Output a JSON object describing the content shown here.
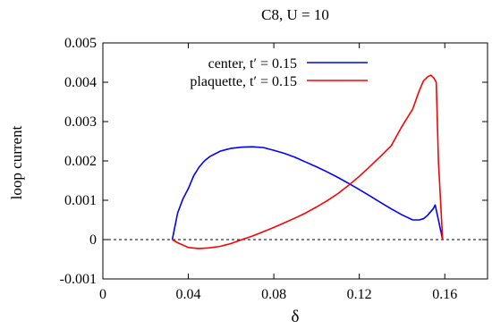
{
  "chart_data": {
    "type": "line",
    "title": "C8, U = 10",
    "xlabel": "δ",
    "ylabel": "loop current",
    "xlim": [
      0,
      0.18
    ],
    "ylim": [
      -0.001,
      0.005
    ],
    "xticks": [
      0,
      0.04,
      0.08,
      0.12,
      0.16
    ],
    "xtick_labels": [
      "0",
      "0.04",
      "0.08",
      "0.12",
      "0.16"
    ],
    "yticks": [
      -0.001,
      0,
      0.001,
      0.002,
      0.003,
      0.004,
      0.005
    ],
    "ytick_labels": [
      "-0.001",
      "0",
      "0.001",
      "0.002",
      "0.003",
      "0.004",
      "0.005"
    ],
    "grid": false,
    "legend_position": "top",
    "zero_line": "dashed",
    "series": [
      {
        "name": "center, t′ = 0.15",
        "color": "#0000ff",
        "x": [
          0.0325,
          0.035,
          0.0375,
          0.04,
          0.0425,
          0.045,
          0.0475,
          0.05,
          0.055,
          0.06,
          0.065,
          0.07,
          0.075,
          0.08,
          0.085,
          0.09,
          0.095,
          0.1,
          0.105,
          0.11,
          0.115,
          0.12,
          0.125,
          0.13,
          0.135,
          0.14,
          0.145,
          0.148,
          0.15,
          0.152,
          0.1545,
          0.1555,
          0.157,
          0.159
        ],
        "y": [
          0.0,
          0.00068,
          0.00104,
          0.0013,
          0.00162,
          0.00184,
          0.002,
          0.00211,
          0.00225,
          0.00232,
          0.00235,
          0.00236,
          0.00234,
          0.00227,
          0.00219,
          0.00209,
          0.00197,
          0.00185,
          0.00172,
          0.00158,
          0.00143,
          0.00127,
          0.00111,
          0.00094,
          0.00078,
          0.00063,
          0.0005,
          0.0005,
          0.00053,
          0.00062,
          0.00078,
          0.00088,
          0.0005,
          0.0
        ]
      },
      {
        "name": "plaquette, t′ = 0.15",
        "color": "#ff0000",
        "x": [
          0.0325,
          0.035,
          0.04,
          0.045,
          0.05,
          0.055,
          0.06,
          0.065,
          0.07,
          0.075,
          0.08,
          0.085,
          0.09,
          0.095,
          0.1,
          0.105,
          0.11,
          0.115,
          0.12,
          0.125,
          0.13,
          0.135,
          0.14,
          0.145,
          0.148,
          0.15,
          0.152,
          0.1535,
          0.155,
          0.156,
          0.157,
          0.159
        ],
        "y": [
          0.0,
          -8e-05,
          -0.0002,
          -0.00023,
          -0.00021,
          -0.00017,
          -0.0001,
          0.0,
          9e-05,
          0.0002,
          0.00031,
          0.00043,
          0.00055,
          0.00068,
          0.00083,
          0.00099,
          0.00117,
          0.00138,
          0.00161,
          0.00186,
          0.00212,
          0.00239,
          0.00288,
          0.00332,
          0.00378,
          0.00403,
          0.00414,
          0.00418,
          0.0041,
          0.004,
          0.002,
          0.0
        ]
      }
    ]
  }
}
